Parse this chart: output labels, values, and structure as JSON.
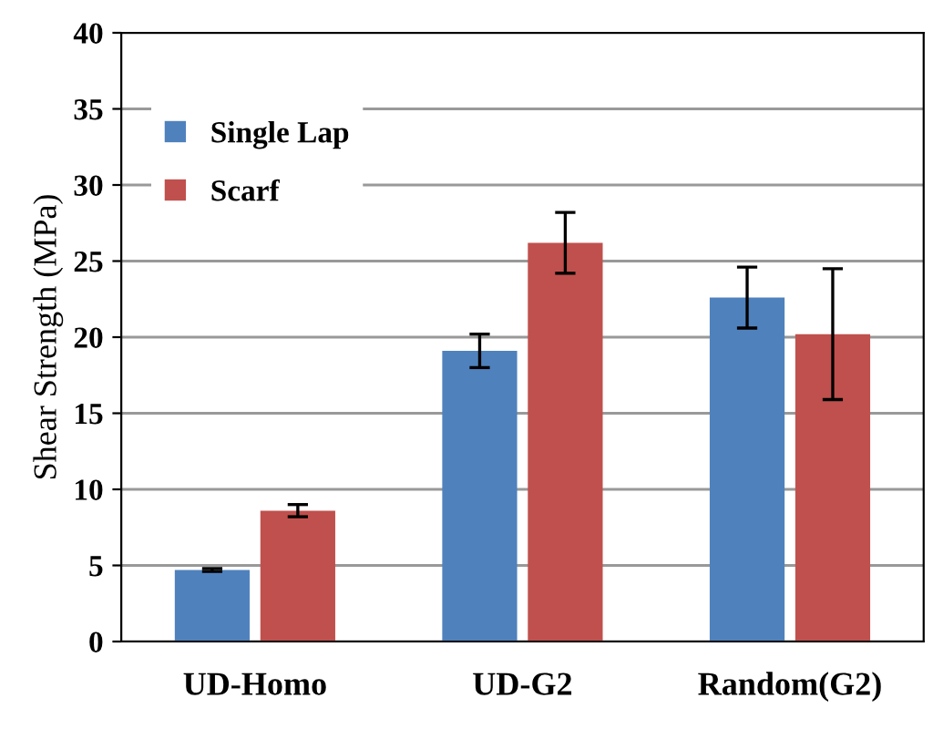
{
  "chart_data": {
    "type": "bar",
    "ylabel": "Shear Strength (MPa)",
    "categories": [
      "UD-Homo",
      "UD-G2",
      "Random(G2)"
    ],
    "series": [
      {
        "name": "Single Lap",
        "color": "#4f81bd",
        "values": [
          4.7,
          19.1,
          22.6
        ],
        "errors": [
          0.1,
          1.1,
          2.0
        ]
      },
      {
        "name": "Scarf",
        "color": "#c0504d",
        "values": [
          8.6,
          26.2,
          20.2
        ],
        "errors": [
          0.4,
          2.0,
          4.3
        ]
      }
    ],
    "ylim": [
      0,
      40
    ],
    "yticks": [
      0,
      5,
      10,
      15,
      20,
      25,
      30,
      35,
      40
    ],
    "grid": "y",
    "legend": "top left"
  }
}
